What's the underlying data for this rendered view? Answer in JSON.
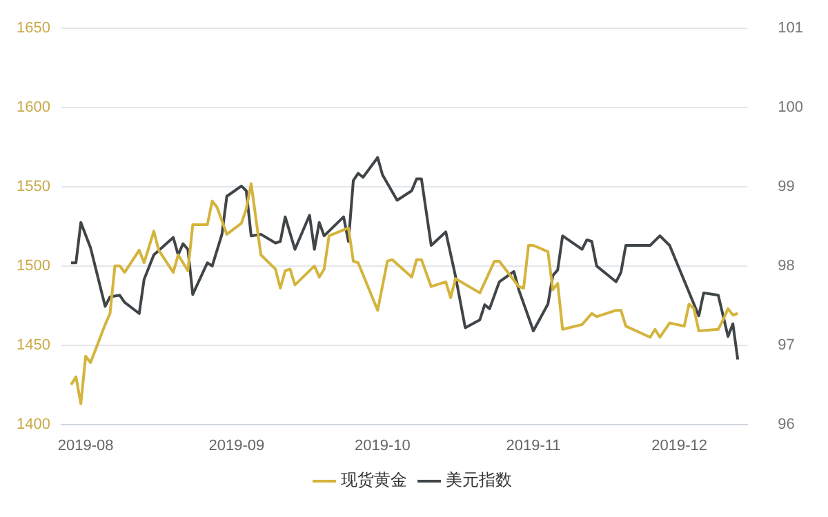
{
  "chart_data": {
    "type": "line",
    "xlim": [
      "2019-07-27",
      "2019-12-15"
    ],
    "xticks": [
      "2019-08",
      "2019-09",
      "2019-10",
      "2019-11",
      "2019-12"
    ],
    "ylim": [
      1400,
      1650
    ],
    "yticks": [
      1400,
      1450,
      1500,
      1550,
      1600,
      1650
    ],
    "y2lim": [
      96,
      101
    ],
    "y2ticks": [
      96,
      97,
      98,
      99,
      100,
      101
    ],
    "grid": "y",
    "legend": "bottom",
    "marker": "none",
    "line_style": "solid",
    "series": [
      {
        "name": "现货黄金",
        "color": "#d4b43c",
        "x": [
          "2019-07-29",
          "2019-07-30",
          "2019-07-31",
          "2019-08-01",
          "2019-08-02",
          "2019-08-05",
          "2019-08-06",
          "2019-08-07",
          "2019-08-08",
          "2019-08-09",
          "2019-08-12",
          "2019-08-13",
          "2019-08-15",
          "2019-08-16",
          "2019-08-19",
          "2019-08-20",
          "2019-08-22",
          "2019-08-23",
          "2019-08-26",
          "2019-08-27",
          "2019-08-28",
          "2019-08-30",
          "2019-09-02",
          "2019-09-03",
          "2019-09-04",
          "2019-09-06",
          "2019-09-09",
          "2019-09-10",
          "2019-09-11",
          "2019-09-12",
          "2019-09-13",
          "2019-09-17",
          "2019-09-18",
          "2019-09-19",
          "2019-09-20",
          "2019-09-24",
          "2019-09-25",
          "2019-09-26",
          "2019-09-30",
          "2019-10-02",
          "2019-10-03",
          "2019-10-07",
          "2019-10-08",
          "2019-10-09",
          "2019-10-11",
          "2019-10-14",
          "2019-10-15",
          "2019-10-16",
          "2019-10-21",
          "2019-10-24",
          "2019-10-25",
          "2019-10-29",
          "2019-10-30",
          "2019-10-31",
          "2019-11-01",
          "2019-11-04",
          "2019-11-05",
          "2019-11-06",
          "2019-11-07",
          "2019-11-11",
          "2019-11-13",
          "2019-11-14",
          "2019-11-18",
          "2019-11-19",
          "2019-11-20",
          "2019-11-25",
          "2019-11-26",
          "2019-11-27",
          "2019-11-29",
          "2019-12-02",
          "2019-12-03",
          "2019-12-04",
          "2019-12-05",
          "2019-12-09",
          "2019-12-10",
          "2019-12-11",
          "2019-12-12",
          "2019-12-13"
        ],
        "values": [
          1425,
          1430,
          1413,
          1443,
          1439,
          1463,
          1470,
          1500,
          1500,
          1496,
          1510,
          1502,
          1522,
          1510,
          1496,
          1507,
          1497,
          1526,
          1526,
          1541,
          1537,
          1520,
          1527,
          1536,
          1552,
          1507,
          1498,
          1486,
          1497,
          1498,
          1488,
          1500,
          1493,
          1498,
          1519,
          1524,
          1503,
          1502,
          1472,
          1503,
          1504,
          1493,
          1504,
          1504,
          1487,
          1490,
          1480,
          1492,
          1483,
          1503,
          1503,
          1487,
          1486,
          1513,
          1513,
          1509,
          1485,
          1489,
          1460,
          1463,
          1470,
          1468,
          1472,
          1472,
          1462,
          1455,
          1460,
          1455,
          1464,
          1462,
          1476,
          1473,
          1459,
          1460,
          1466,
          1473,
          1469,
          1470
        ]
      },
      {
        "name": "美元指数",
        "color": "#404548",
        "axis": "y2",
        "x": [
          "2019-07-29",
          "2019-07-30",
          "2019-07-31",
          "2019-08-02",
          "2019-08-05",
          "2019-08-06",
          "2019-08-08",
          "2019-08-09",
          "2019-08-12",
          "2019-08-13",
          "2019-08-15",
          "2019-08-19",
          "2019-08-20",
          "2019-08-21",
          "2019-08-22",
          "2019-08-23",
          "2019-08-26",
          "2019-08-27",
          "2019-08-29",
          "2019-08-30",
          "2019-09-02",
          "2019-09-03",
          "2019-09-04",
          "2019-09-06",
          "2019-09-09",
          "2019-09-10",
          "2019-09-11",
          "2019-09-13",
          "2019-09-16",
          "2019-09-17",
          "2019-09-18",
          "2019-09-19",
          "2019-09-23",
          "2019-09-24",
          "2019-09-25",
          "2019-09-26",
          "2019-09-27",
          "2019-09-30",
          "2019-10-01",
          "2019-10-04",
          "2019-10-07",
          "2019-10-08",
          "2019-10-09",
          "2019-10-11",
          "2019-10-14",
          "2019-10-16",
          "2019-10-18",
          "2019-10-21",
          "2019-10-22",
          "2019-10-23",
          "2019-10-25",
          "2019-10-28",
          "2019-10-29",
          "2019-11-01",
          "2019-11-04",
          "2019-11-05",
          "2019-11-06",
          "2019-11-07",
          "2019-11-11",
          "2019-11-12",
          "2019-11-13",
          "2019-11-14",
          "2019-11-18",
          "2019-11-19",
          "2019-11-20",
          "2019-11-25",
          "2019-11-27",
          "2019-11-29",
          "2019-12-05",
          "2019-12-06",
          "2019-12-09",
          "2019-12-10",
          "2019-12-11",
          "2019-12-12",
          "2019-12-13"
        ],
        "values": [
          98.04,
          98.04,
          98.55,
          98.23,
          97.49,
          97.61,
          97.63,
          97.54,
          97.4,
          97.83,
          98.14,
          98.36,
          98.14,
          98.28,
          98.21,
          97.64,
          98.04,
          98.0,
          98.4,
          98.88,
          99.01,
          98.95,
          98.38,
          98.4,
          98.29,
          98.31,
          98.62,
          98.21,
          98.64,
          98.21,
          98.55,
          98.38,
          98.62,
          98.31,
          99.08,
          99.17,
          99.12,
          99.37,
          99.15,
          98.83,
          98.95,
          99.1,
          99.1,
          98.26,
          98.43,
          97.87,
          97.22,
          97.32,
          97.51,
          97.46,
          97.8,
          97.93,
          97.7,
          97.18,
          97.52,
          97.88,
          97.95,
          98.38,
          98.21,
          98.33,
          98.31,
          98.0,
          97.8,
          97.92,
          98.26,
          98.26,
          98.38,
          98.26,
          97.37,
          97.66,
          97.63,
          97.37,
          97.11,
          97.27,
          96.82
        ]
      }
    ]
  }
}
